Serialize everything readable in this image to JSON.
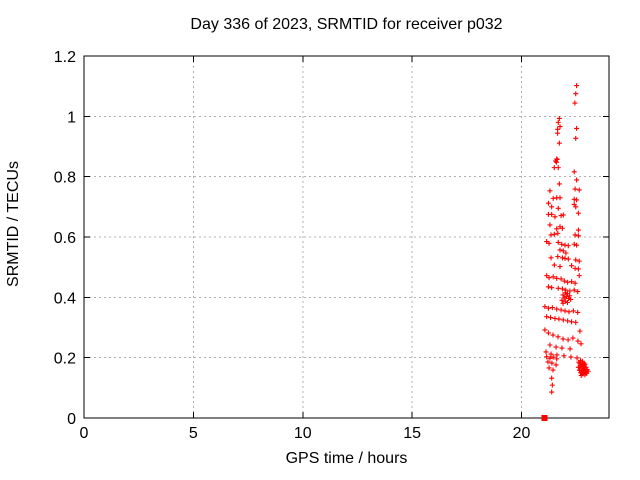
{
  "chart_data": {
    "type": "scatter",
    "title": "Day 336 of 2023, SRMTID for receiver p032",
    "xlabel": "GPS time / hours",
    "ylabel": "SRMTID / TECUs",
    "xlim": [
      0,
      24
    ],
    "ylim": [
      0,
      1.2
    ],
    "xticks": [
      0,
      5,
      10,
      15,
      20
    ],
    "xtick_labels": [
      "0",
      "5",
      "10",
      "15",
      "20"
    ],
    "yticks": [
      0,
      0.2,
      0.4,
      0.6,
      0.8,
      1,
      1.2
    ],
    "ytick_labels": [
      "0",
      "0.2",
      "0.4",
      "0.6",
      "0.8",
      "1",
      "1.2"
    ],
    "grid": true,
    "legend": "none",
    "colors": {
      "marker": "#ff0000",
      "axis": "#000000",
      "grid": "#b0b0b0"
    },
    "series": [
      {
        "name": "srmtid-points",
        "marker": "plus",
        "color": "#ff0000",
        "points": [
          [
            22.52,
            1.102
          ],
          [
            22.48,
            1.075
          ],
          [
            22.44,
            1.044
          ],
          [
            21.73,
            0.993
          ],
          [
            21.68,
            0.98
          ],
          [
            21.76,
            0.966
          ],
          [
            21.65,
            0.957
          ],
          [
            21.65,
            0.944
          ],
          [
            21.73,
            0.911
          ],
          [
            22.52,
            0.96
          ],
          [
            22.48,
            0.927
          ],
          [
            21.61,
            0.859
          ],
          [
            21.56,
            0.852
          ],
          [
            21.63,
            0.857
          ],
          [
            21.6,
            0.848
          ],
          [
            21.5,
            0.83
          ],
          [
            21.68,
            0.83
          ],
          [
            22.41,
            0.816
          ],
          [
            22.52,
            0.789
          ],
          [
            21.73,
            0.776
          ],
          [
            22.45,
            0.759
          ],
          [
            22.64,
            0.756
          ],
          [
            21.3,
            0.753
          ],
          [
            21.45,
            0.728
          ],
          [
            21.61,
            0.73
          ],
          [
            21.76,
            0.73
          ],
          [
            22.41,
            0.725
          ],
          [
            22.52,
            0.723
          ],
          [
            21.23,
            0.712
          ],
          [
            21.38,
            0.7
          ],
          [
            21.68,
            0.695
          ],
          [
            22.41,
            0.708
          ],
          [
            22.48,
            0.7
          ],
          [
            22.6,
            0.679
          ],
          [
            21.23,
            0.675
          ],
          [
            21.38,
            0.675
          ],
          [
            21.53,
            0.667
          ],
          [
            21.81,
            0.671
          ],
          [
            21.91,
            0.673
          ],
          [
            21.3,
            0.64
          ],
          [
            21.76,
            0.634
          ],
          [
            21.61,
            0.627
          ],
          [
            21.87,
            0.629
          ],
          [
            22.6,
            0.623
          ],
          [
            21.35,
            0.607
          ],
          [
            21.5,
            0.609
          ],
          [
            21.66,
            0.612
          ],
          [
            22.45,
            0.607
          ],
          [
            22.6,
            0.604
          ],
          [
            21.15,
            0.585
          ],
          [
            21.26,
            0.579
          ],
          [
            21.68,
            0.582
          ],
          [
            21.84,
            0.576
          ],
          [
            21.99,
            0.573
          ],
          [
            22.14,
            0.571
          ],
          [
            22.41,
            0.576
          ],
          [
            22.52,
            0.573
          ],
          [
            21.76,
            0.557
          ],
          [
            21.91,
            0.554
          ],
          [
            22.03,
            0.547
          ],
          [
            21.35,
            0.531
          ],
          [
            21.66,
            0.535
          ],
          [
            21.87,
            0.531
          ],
          [
            21.99,
            0.529
          ],
          [
            22.14,
            0.527
          ],
          [
            22.48,
            0.524
          ],
          [
            22.64,
            0.52
          ],
          [
            21.5,
            0.507
          ],
          [
            21.76,
            0.502
          ],
          [
            22.29,
            0.505
          ],
          [
            22.45,
            0.496
          ],
          [
            22.6,
            0.494
          ],
          [
            21.15,
            0.472
          ],
          [
            21.26,
            0.465
          ],
          [
            21.45,
            0.468
          ],
          [
            21.61,
            0.463
          ],
          [
            21.81,
            0.461
          ],
          [
            21.96,
            0.454
          ],
          [
            22.11,
            0.45
          ],
          [
            22.29,
            0.452
          ],
          [
            22.45,
            0.447
          ],
          [
            22.64,
            0.472
          ],
          [
            21.23,
            0.435
          ],
          [
            21.38,
            0.432
          ],
          [
            21.68,
            0.43
          ],
          [
            21.87,
            0.428
          ],
          [
            22.02,
            0.424
          ],
          [
            22.21,
            0.421
          ],
          [
            22.41,
            0.424
          ],
          [
            22.57,
            0.419
          ],
          [
            22.0,
            0.415
          ],
          [
            22.1,
            0.412
          ],
          [
            21.9,
            0.408
          ],
          [
            22.2,
            0.405
          ],
          [
            22.05,
            0.402
          ],
          [
            21.95,
            0.398
          ],
          [
            22.15,
            0.396
          ],
          [
            22.25,
            0.393
          ],
          [
            21.85,
            0.39
          ],
          [
            22.0,
            0.387
          ],
          [
            22.1,
            0.383
          ],
          [
            21.9,
            0.38
          ],
          [
            21.07,
            0.369
          ],
          [
            21.23,
            0.364
          ],
          [
            21.41,
            0.366
          ],
          [
            21.61,
            0.361
          ],
          [
            21.81,
            0.358
          ],
          [
            21.99,
            0.355
          ],
          [
            22.17,
            0.352
          ],
          [
            22.37,
            0.355
          ],
          [
            22.57,
            0.35
          ],
          [
            21.15,
            0.336
          ],
          [
            21.33,
            0.333
          ],
          [
            21.53,
            0.33
          ],
          [
            21.71,
            0.328
          ],
          [
            21.91,
            0.325
          ],
          [
            22.11,
            0.322
          ],
          [
            22.29,
            0.319
          ],
          [
            22.48,
            0.317
          ],
          [
            21.07,
            0.292
          ],
          [
            21.23,
            0.282
          ],
          [
            21.44,
            0.275
          ],
          [
            21.67,
            0.269
          ],
          [
            21.9,
            0.262
          ],
          [
            22.13,
            0.259
          ],
          [
            22.35,
            0.265
          ],
          [
            22.58,
            0.255
          ],
          [
            22.67,
            0.288
          ],
          [
            21.3,
            0.242
          ],
          [
            21.58,
            0.235
          ],
          [
            21.85,
            0.232
          ],
          [
            22.22,
            0.229
          ],
          [
            22.72,
            0.246
          ],
          [
            21.12,
            0.219
          ],
          [
            21.35,
            0.212
          ],
          [
            21.62,
            0.209
          ],
          [
            21.94,
            0.206
          ],
          [
            22.26,
            0.202
          ],
          [
            22.54,
            0.199
          ],
          [
            21.15,
            0.203
          ],
          [
            21.3,
            0.198
          ],
          [
            21.45,
            0.202
          ],
          [
            21.61,
            0.196
          ],
          [
            21.21,
            0.186
          ],
          [
            21.39,
            0.182
          ],
          [
            21.58,
            0.176
          ],
          [
            21.26,
            0.166
          ],
          [
            21.44,
            0.159
          ],
          [
            22.62,
            0.185
          ],
          [
            22.7,
            0.19
          ],
          [
            22.78,
            0.188
          ],
          [
            22.85,
            0.182
          ],
          [
            22.9,
            0.178
          ],
          [
            22.75,
            0.175
          ],
          [
            22.68,
            0.172
          ],
          [
            22.82,
            0.17
          ],
          [
            22.95,
            0.168
          ],
          [
            22.72,
            0.165
          ],
          [
            22.88,
            0.163
          ],
          [
            22.8,
            0.16
          ],
          [
            22.65,
            0.158
          ],
          [
            22.92,
            0.156
          ],
          [
            22.75,
            0.154
          ],
          [
            22.85,
            0.152
          ],
          [
            22.7,
            0.15
          ],
          [
            22.98,
            0.148
          ],
          [
            22.8,
            0.146
          ],
          [
            22.9,
            0.143
          ],
          [
            22.73,
            0.141
          ],
          [
            22.83,
            0.158
          ],
          [
            23.0,
            0.16
          ],
          [
            23.05,
            0.155
          ],
          [
            22.6,
            0.168
          ],
          [
            22.67,
            0.18
          ],
          [
            22.77,
            0.148
          ],
          [
            22.87,
            0.17
          ],
          [
            22.93,
            0.15
          ],
          [
            22.78,
            0.178
          ],
          [
            21.38,
            0.132
          ],
          [
            21.41,
            0.109
          ],
          [
            21.38,
            0.086
          ]
        ]
      },
      {
        "name": "srmtid-zero-flag",
        "marker": "square",
        "color": "#ff0000",
        "points": [
          [
            21.05,
            0.0
          ]
        ]
      }
    ]
  }
}
